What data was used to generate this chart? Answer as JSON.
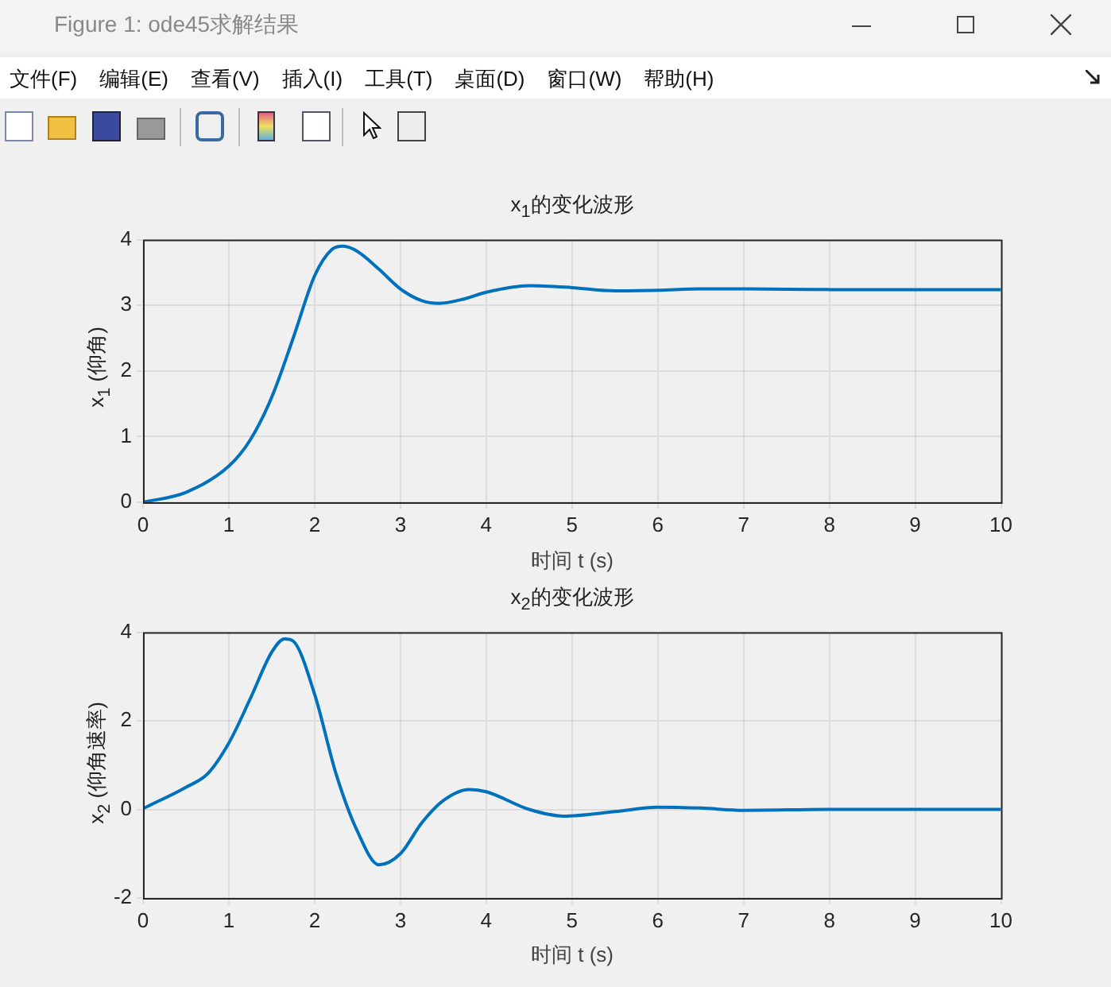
{
  "chart_data": [
    {
      "type": "line",
      "title": "x$_{1}$的变化波形",
      "xlabel": "时间 t (s)",
      "ylabel": "x$_{1}$ (仰角)",
      "annotations": [
        "Figure 1: ode45求解结果",
        "文件(F)",
        "编辑(E)",
        "查看(V)",
        "插入(I)",
        "工具(T)",
        "桌面(D)",
        "窗口(W)",
        "帮助(H)"
      ],
      "series": [
        {
          "color": "#0072bd",
          "x": [
            0,
            0.5,
            1,
            1.25,
            1.5,
            1.75,
            2,
            2.2,
            2.33,
            2.5,
            2.75,
            3,
            3.25,
            3.45,
            3.75,
            4,
            4.5,
            5,
            5.5,
            6,
            6.5,
            7,
            8,
            9,
            10
          ],
          "values": [
            0,
            0.15,
            0.55,
            0.95,
            1.6,
            2.5,
            3.45,
            3.85,
            3.9,
            3.82,
            3.55,
            3.25,
            3.07,
            3.03,
            3.1,
            3.2,
            3.3,
            3.27,
            3.22,
            3.23,
            3.25,
            3.25,
            3.24,
            3.24,
            3.24
          ]
        }
      ],
      "xlim": [
        0,
        10
      ],
      "xticks": [
        0,
        1,
        2,
        3,
        4,
        5,
        6,
        7,
        8,
        9,
        10
      ],
      "ylim": [
        0,
        4
      ],
      "yticks": [
        0,
        1,
        2,
        3,
        4
      ],
      "grid": true,
      "legend": false,
      "marker": "none",
      "line_style": "solid"
    },
    {
      "type": "line",
      "title": "x$_{2}$的变化波形",
      "xlabel": "时间 t (s)",
      "ylabel": "x$_{2}$ (仰角速率)",
      "series": [
        {
          "color": "#0072bd",
          "x": [
            0,
            0.5,
            0.75,
            1,
            1.25,
            1.5,
            1.65,
            1.75,
            2,
            2.25,
            2.5,
            2.75,
            3,
            3.25,
            3.5,
            3.8,
            4,
            4.5,
            4.9,
            5.5,
            6,
            6.5,
            7,
            8,
            9,
            10
          ],
          "values": [
            0.02,
            0.5,
            0.8,
            1.5,
            2.5,
            3.55,
            3.85,
            3.8,
            2.6,
            0.8,
            -0.5,
            -1.25,
            -1,
            -0.3,
            0.2,
            0.45,
            0.4,
            0,
            -0.15,
            -0.05,
            0.05,
            0.03,
            -0.02,
            0,
            0,
            0
          ]
        }
      ],
      "xlim": [
        0,
        10
      ],
      "xticks": [
        0,
        1,
        2,
        3,
        4,
        5,
        6,
        7,
        8,
        9,
        10
      ],
      "ylim": [
        -2,
        4
      ],
      "yticks": [
        -2,
        0,
        2,
        4
      ],
      "grid": true,
      "legend": false,
      "marker": "none",
      "line_style": "solid"
    }
  ]
}
